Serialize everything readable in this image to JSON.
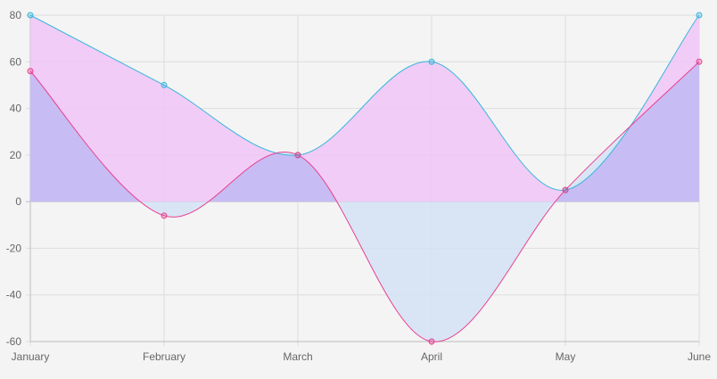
{
  "chart_data": {
    "type": "area",
    "categories": [
      "January",
      "February",
      "March",
      "April",
      "May",
      "June"
    ],
    "ylim": [
      -60,
      80
    ],
    "y_ticks": [
      80,
      60,
      40,
      20,
      0,
      -20,
      -40,
      -60
    ],
    "grid": true,
    "series": [
      {
        "values": [
          80,
          50,
          20,
          60,
          5,
          80
        ],
        "stroke": "#36b6dc",
        "fill": "#f0c4f6"
      },
      {
        "values": [
          56,
          -6,
          20,
          -60,
          5,
          60
        ],
        "stroke": "#e8408e",
        "fill": "#d4e2f4"
      }
    ],
    "overlap_fill": "#c8bcf4",
    "grid_color": "#dddddd",
    "axis_color": "#bbbbbb",
    "tick_label_color": "#666666"
  }
}
